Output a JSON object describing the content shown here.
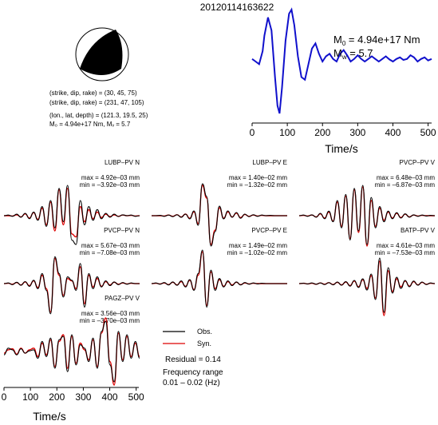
{
  "title": "20120114163622",
  "colors": {
    "obs": "#000000",
    "syn": "#dd0000",
    "stf": "#1010cc",
    "beachball": "#000000"
  },
  "mechanism": {
    "line1": "(strike, dip, rake) = (30, 45, 75)",
    "line2": "(strike, dip, rake) = (231, 47, 105)",
    "line3": "(lon., lat, depth) = (121.3, 19.5, 25)",
    "line4": "M₀ = 4.94e+17 Nm, Mᵥ = 5.7"
  },
  "stf": {
    "m0_label": "M",
    "m0_sub": "0",
    "m0_value": " = 4.94e+17 Nm",
    "mw_label": "M",
    "mw_sub": "w",
    "mw_value": " = 5.7",
    "xlabel": "Time/s",
    "xticks": [
      "0",
      "100",
      "200",
      "300",
      "400",
      "500"
    ]
  },
  "bottom_axis": {
    "xlabel": "Time/s",
    "xticks": [
      "0",
      "100",
      "200",
      "300",
      "400",
      "500"
    ]
  },
  "legend": {
    "obs": "Obs.",
    "syn": "Syn.",
    "residual": "Residual = 0.14",
    "freq_title": "Frequency range",
    "freq_range": "0.01 – 0.02 (Hz)"
  },
  "chart_data": [
    {
      "type": "line",
      "title": "",
      "xlabel": "Time/s",
      "ylabel": "",
      "xlim": [
        0,
        510
      ],
      "series": [
        {
          "name": "",
          "x": [
            0,
            10,
            20,
            30,
            35,
            45,
            55,
            65,
            72,
            78,
            85,
            95,
            105,
            112,
            120,
            130,
            140,
            150,
            160,
            170,
            180,
            190,
            200,
            210,
            220,
            230,
            240,
            250,
            260,
            270,
            280,
            290,
            300,
            310,
            320,
            330,
            340,
            350,
            360,
            370,
            380,
            390,
            400,
            410,
            420,
            430,
            440,
            450,
            460,
            470,
            480,
            490,
            500,
            510
          ],
          "y": [
            0.05,
            0.0,
            -0.05,
            0.2,
            0.5,
            0.85,
            0.6,
            -0.3,
            -0.85,
            -1.0,
            -0.5,
            0.4,
            0.92,
            1.0,
            0.7,
            0.1,
            -0.3,
            -0.35,
            -0.05,
            0.25,
            0.35,
            0.15,
            0.0,
            0.1,
            0.15,
            0.05,
            0.0,
            0.15,
            0.22,
            0.12,
            0.0,
            0.05,
            0.12,
            0.05,
            0.0,
            0.05,
            0.1,
            0.05,
            0.0,
            0.05,
            0.1,
            0.04,
            0.0,
            0.05,
            0.08,
            0.03,
            0.05,
            0.12,
            0.08,
            0.0,
            0.05,
            0.08,
            0.02,
            0.05
          ]
        }
      ]
    },
    {
      "type": "line",
      "station": "LUBP–PV N",
      "max_label": "max = 4.92e–03 mm",
      "min_label": "min = –3.92e–03 mm",
      "series": [
        {
          "name": "Obs.",
          "y": [
            0,
            0.02,
            -0.02,
            0.05,
            -0.05,
            0.08,
            -0.1,
            0.12,
            -0.15,
            0.3,
            -0.35,
            0.5,
            -0.4,
            0.9,
            -0.2,
            1.0,
            -0.8,
            -0.95,
            0.5,
            -0.3,
            0.3,
            -0.15,
            0.2,
            -0.1,
            0.08,
            -0.05,
            0.05,
            -0.03,
            0.03,
            0,
            0.02,
            -0.02,
            0
          ]
        },
        {
          "name": "Syn.",
          "y": [
            0,
            0.0,
            -0.01,
            0.03,
            -0.04,
            0.06,
            -0.08,
            0.1,
            -0.12,
            0.25,
            -0.3,
            0.45,
            -0.5,
            0.85,
            -0.3,
            0.9,
            -0.6,
            -0.7,
            0.3,
            -0.2,
            0.2,
            -0.1,
            0.12,
            -0.06,
            0.05,
            -0.03,
            0.03,
            -0.02,
            0.02,
            0,
            0.01,
            -0.01,
            0
          ]
        }
      ]
    },
    {
      "type": "line",
      "station": "LUBP–PV E",
      "max_label": "max = 1.40e–02 mm",
      "min_label": "min = –1.32e–02 mm",
      "series": [
        {
          "name": "Obs.",
          "y": [
            0,
            0,
            0.01,
            -0.02,
            0.02,
            -0.03,
            0.03,
            -0.05,
            0.05,
            -0.1,
            0.15,
            -0.3,
            1.0,
            0.6,
            -0.95,
            -0.5,
            0.3,
            -0.1,
            0.15,
            -0.05,
            0.1,
            -0.08,
            0.05,
            -0.03,
            0.03,
            -0.02,
            0.02,
            0,
            0.01,
            0,
            0,
            0,
            0
          ]
        },
        {
          "name": "Syn.",
          "y": [
            0,
            0,
            0,
            -0.01,
            0.02,
            -0.02,
            0.03,
            -0.04,
            0.05,
            -0.08,
            0.12,
            -0.25,
            0.95,
            0.55,
            -0.9,
            -0.45,
            0.25,
            -0.08,
            0.12,
            -0.04,
            0.08,
            -0.06,
            0.04,
            -0.02,
            0.02,
            -0.01,
            0.01,
            0,
            0,
            0,
            0,
            0,
            0
          ]
        }
      ]
    },
    {
      "type": "line",
      "station": "PVCP–PV V",
      "max_label": "max = 6.48e–03 mm",
      "min_label": "min = –6.87e–03 mm",
      "series": [
        {
          "name": "Obs.",
          "y": [
            0,
            0.02,
            -0.02,
            0.03,
            -0.05,
            0.08,
            -0.1,
            0.15,
            -0.2,
            0.5,
            -0.4,
            0.7,
            -0.8,
            0.9,
            -0.5,
            1.0,
            -0.95,
            0.6,
            -0.4,
            0.3,
            -0.2,
            0.15,
            -0.1,
            0.1,
            -0.08,
            0.06,
            -0.05,
            0.03,
            -0.02,
            0.02,
            -0.01,
            0.01,
            0
          ]
        },
        {
          "name": "Syn.",
          "y": [
            0,
            0.01,
            -0.01,
            0.02,
            -0.04,
            0.06,
            -0.08,
            0.12,
            -0.18,
            0.45,
            -0.35,
            0.65,
            -0.75,
            0.85,
            -0.55,
            0.95,
            -1.0,
            0.5,
            -0.35,
            0.25,
            -0.15,
            0.12,
            -0.08,
            0.08,
            -0.06,
            0.05,
            -0.04,
            0.02,
            -0.01,
            0.01,
            0,
            0,
            0
          ]
        }
      ]
    },
    {
      "type": "line",
      "station": "PVCP–PV N",
      "max_label": "max = 5.67e–03 mm",
      "min_label": "min = –7.08e–03 mm",
      "series": [
        {
          "name": "Obs.",
          "y": [
            0,
            0.02,
            -0.03,
            0.04,
            -0.05,
            0.06,
            -0.08,
            0.1,
            -0.15,
            0.3,
            -0.2,
            -0.9,
            0.8,
            0.3,
            -0.4,
            0.2,
            0.1,
            -0.2,
            0.6,
            -0.7,
            0.3,
            -0.15,
            0.2,
            -0.1,
            0.08,
            -0.06,
            0.05,
            -0.03,
            0.03,
            -0.02,
            0.02,
            0,
            0
          ]
        },
        {
          "name": "Syn.",
          "y": [
            0,
            0.01,
            -0.02,
            0.03,
            -0.04,
            0.05,
            -0.06,
            0.08,
            -0.12,
            0.25,
            -0.15,
            -0.85,
            0.75,
            0.25,
            -0.35,
            0.15,
            0.08,
            -0.15,
            0.5,
            -0.6,
            0.25,
            -0.1,
            0.15,
            -0.08,
            0.06,
            -0.04,
            0.04,
            -0.02,
            0.02,
            -0.01,
            0.01,
            0,
            0
          ]
        }
      ]
    },
    {
      "type": "line",
      "station": "PVCP–PV E",
      "max_label": "max = 1.49e–02 mm",
      "min_label": "min = –1.02e–02 mm",
      "series": [
        {
          "name": "Obs.",
          "y": [
            0,
            0.02,
            -0.02,
            0.03,
            -0.04,
            0.05,
            -0.05,
            0.08,
            -0.1,
            0.12,
            -0.2,
            0.3,
            1.0,
            -0.7,
            0.4,
            -0.2,
            0.15,
            -0.1,
            0.08,
            -0.06,
            0.05,
            -0.04,
            0.03,
            -0.02,
            0.02,
            -0.01,
            0.01,
            0,
            0,
            0,
            0,
            0,
            0
          ]
        },
        {
          "name": "Syn.",
          "y": [
            0,
            0.01,
            -0.01,
            0.02,
            -0.03,
            0.04,
            -0.04,
            0.06,
            -0.08,
            0.1,
            -0.18,
            0.25,
            0.95,
            -0.65,
            0.35,
            -0.15,
            0.12,
            -0.08,
            0.06,
            -0.04,
            0.04,
            -0.03,
            0.02,
            -0.01,
            0.01,
            0,
            0,
            0,
            0,
            0,
            0,
            0,
            0
          ]
        }
      ]
    },
    {
      "type": "line",
      "station": "BATP–PV V",
      "max_label": "max = 4.61e–03 mm",
      "min_label": "min = –7.53e–03 mm",
      "series": [
        {
          "name": "Obs.",
          "y": [
            0,
            0.01,
            -0.01,
            0.02,
            -0.02,
            0.02,
            -0.03,
            0.03,
            -0.04,
            0.05,
            -0.05,
            0.06,
            -0.08,
            0.1,
            -0.12,
            0.15,
            -0.2,
            0.3,
            -0.5,
            0.8,
            -0.9,
            0.5,
            -0.3,
            0.2,
            -0.15,
            0.1,
            -0.1,
            0.08,
            -0.05,
            0.05,
            -0.03,
            0.02,
            0
          ]
        },
        {
          "name": "Syn.",
          "y": [
            0,
            0.01,
            -0.01,
            0.01,
            -0.02,
            0.02,
            -0.02,
            0.03,
            -0.03,
            0.04,
            -0.04,
            0.05,
            -0.06,
            0.08,
            -0.1,
            0.12,
            -0.15,
            0.25,
            -0.45,
            0.7,
            -1.0,
            0.4,
            -0.25,
            0.15,
            -0.1,
            0.08,
            -0.08,
            0.06,
            -0.04,
            0.04,
            -0.02,
            0.01,
            0
          ]
        }
      ]
    },
    {
      "type": "line",
      "station": "PAGZ–PV V",
      "max_label": "max = 3.56e–03 mm",
      "min_label": "min = –3.70e–03 mm",
      "series": [
        {
          "name": "Obs.",
          "y": [
            -0.1,
            0.1,
            0.05,
            -0.1,
            0.08,
            -0.05,
            0.02,
            0.05,
            -0.2,
            0.3,
            -0.15,
            0.4,
            -0.5,
            0.35,
            0.45,
            -0.6,
            0.5,
            -0.4,
            0.2,
            0.1,
            -0.3,
            0.4,
            -0.5,
            0.6,
            0.9,
            -0.4,
            -0.9,
            0.6,
            -0.3,
            0.5,
            -0.2,
            0.3,
            -0.2
          ]
        },
        {
          "name": "Syn.",
          "y": [
            -0.05,
            0.05,
            0.08,
            -0.08,
            0.1,
            -0.05,
            0.05,
            0.1,
            -0.15,
            0.25,
            -0.1,
            0.35,
            -0.45,
            0.3,
            0.5,
            -0.5,
            0.45,
            -0.35,
            0.25,
            0.05,
            -0.25,
            0.35,
            -0.45,
            0.55,
            1.0,
            -0.3,
            -1.0,
            0.55,
            -0.25,
            0.45,
            -0.15,
            0.25,
            -0.15
          ]
        }
      ]
    }
  ]
}
